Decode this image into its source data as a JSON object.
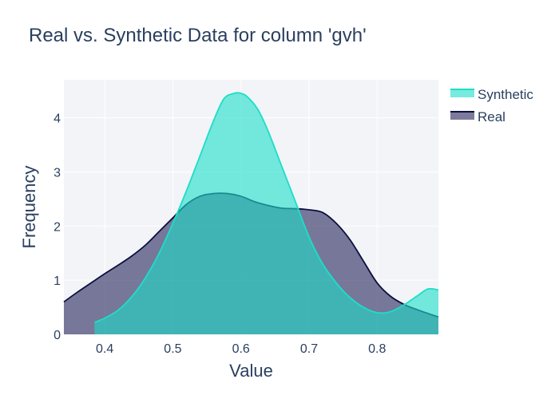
{
  "chart_data": {
    "type": "area",
    "title": "Real vs. Synthetic Data for column 'gvh'",
    "xlabel": "Value",
    "ylabel": "Frequency",
    "xlim": [
      0.34,
      0.89
    ],
    "ylim": [
      0,
      4.7
    ],
    "x_ticks": [
      0.4,
      0.5,
      0.6,
      0.7,
      0.8
    ],
    "y_ticks": [
      0,
      1,
      2,
      3,
      4
    ],
    "x_tick_labels": [
      "0.4",
      "0.5",
      "0.6",
      "0.7",
      "0.8"
    ],
    "y_tick_labels": [
      "0",
      "1",
      "2",
      "3",
      "4"
    ],
    "grid": true,
    "legend_position": "top-right",
    "series": [
      {
        "name": "Synthetic",
        "color": "#1ddec8",
        "fill": "rgba(29,222,200,0.6)",
        "x": [
          0.385,
          0.4,
          0.42,
          0.44,
          0.46,
          0.48,
          0.5,
          0.52,
          0.54,
          0.56,
          0.575,
          0.59,
          0.6,
          0.61,
          0.625,
          0.64,
          0.66,
          0.68,
          0.7,
          0.72,
          0.74,
          0.76,
          0.78,
          0.8,
          0.82,
          0.84,
          0.86,
          0.875,
          0.89
        ],
        "values": [
          0.22,
          0.3,
          0.45,
          0.7,
          1.05,
          1.5,
          2.05,
          2.65,
          3.3,
          3.95,
          4.35,
          4.45,
          4.45,
          4.38,
          4.15,
          3.75,
          3.1,
          2.45,
          1.8,
          1.3,
          0.95,
          0.68,
          0.5,
          0.4,
          0.42,
          0.55,
          0.72,
          0.84,
          0.82
        ]
      },
      {
        "name": "Real",
        "color": "#0d0f3f",
        "fill": "rgba(36,35,90,0.6)",
        "x": [
          0.34,
          0.36,
          0.38,
          0.4,
          0.42,
          0.44,
          0.46,
          0.48,
          0.5,
          0.52,
          0.54,
          0.56,
          0.58,
          0.6,
          0.62,
          0.64,
          0.66,
          0.68,
          0.7,
          0.72,
          0.74,
          0.76,
          0.78,
          0.8,
          0.82,
          0.84,
          0.86,
          0.89
        ],
        "values": [
          0.6,
          0.78,
          0.95,
          1.12,
          1.28,
          1.45,
          1.65,
          1.9,
          2.15,
          2.4,
          2.55,
          2.6,
          2.6,
          2.55,
          2.45,
          2.38,
          2.33,
          2.32,
          2.3,
          2.25,
          2.05,
          1.75,
          1.35,
          0.95,
          0.7,
          0.55,
          0.45,
          0.32
        ]
      }
    ]
  }
}
